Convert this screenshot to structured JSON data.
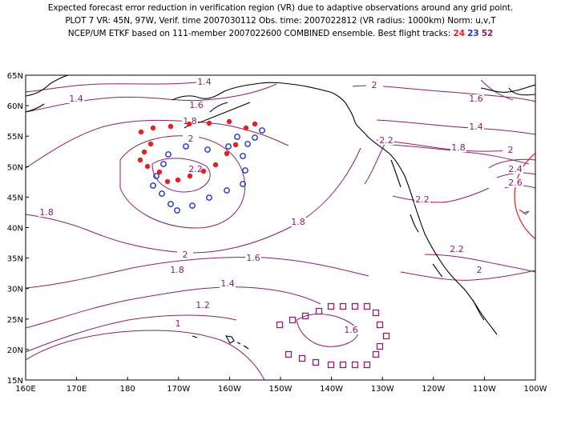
{
  "header": {
    "line1": "Expected forecast error reduction in verification region (VR) due to adaptive observations around any grid point.",
    "line2": "PLOT 7 VR: 45N, 97W, Verif. time 2007030112 Obs. time: 2007022812 (VR radius: 1000km) Norm: u,v,T",
    "line3_prefix": "NCEP/UM ETKF based on 111-member 2007022600 COMBINED ensemble.  Best flight tracks:",
    "track_a": "24",
    "track_b": "23",
    "track_c": "52"
  },
  "map": {
    "lon_labels": [
      "160E",
      "170E",
      "180",
      "170W",
      "160W",
      "150W",
      "140W",
      "130W",
      "120W",
      "110W",
      "100W"
    ],
    "lat_labels": [
      "15N",
      "20N",
      "25N",
      "30N",
      "35N",
      "40N",
      "45N",
      "50N",
      "55N",
      "60N",
      "65N"
    ],
    "contour_labels": [
      "1.4",
      "1.4",
      "1.6",
      "1.6",
      "1.8",
      "2",
      "2.2",
      "1.8",
      "1.6",
      "1.4",
      "1.2",
      "1",
      "2",
      "1.8",
      "1.6",
      "1.4",
      "1.8",
      "2",
      "2.2",
      "2.2",
      "2.4",
      "2.6",
      "2.2",
      "2",
      "1.6",
      "1.8",
      "2"
    ],
    "colors": {
      "contour": "#8a1f6a",
      "track_24": "#e52020",
      "track_23": "#2233cc",
      "track_52": "#8a1f6a",
      "verification_circle": "#e52020",
      "coast": "#000000"
    },
    "tracks": [
      {
        "id": "24",
        "symbol": "filled-circle"
      },
      {
        "id": "23",
        "symbol": "open-circle"
      },
      {
        "id": "52",
        "symbol": "open-square"
      }
    ]
  }
}
